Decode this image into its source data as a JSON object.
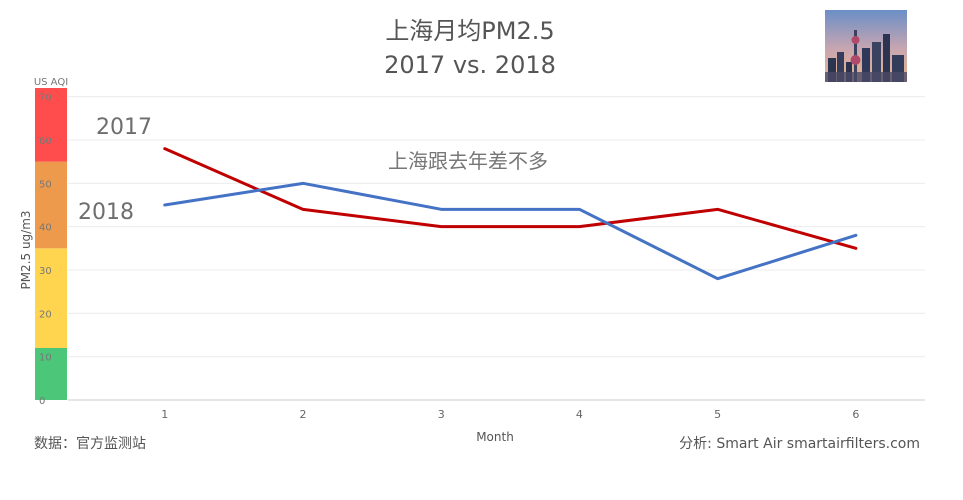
{
  "chart_data": {
    "type": "line",
    "title": "上海月均PM2.5",
    "subtitle": "2017 vs. 2018",
    "xlabel": "Month",
    "ylabel": "PM2.5 ug/m3",
    "x": [
      1,
      2,
      3,
      4,
      5,
      6
    ],
    "xlim": [
      0.3,
      6.5
    ],
    "ylim": [
      0,
      72
    ],
    "grid": true,
    "series": [
      {
        "name": "2017",
        "color": "#c00000",
        "values": [
          58,
          44,
          40,
          40,
          44,
          35
        ]
      },
      {
        "name": "2018",
        "color": "#4472c4",
        "values": [
          45,
          50,
          44,
          44,
          28,
          38
        ]
      }
    ],
    "aqi_scale": {
      "label": "US AQI",
      "ticks": [
        "0",
        "10",
        "20",
        "30",
        "40",
        "50",
        "60",
        "70"
      ],
      "bands": [
        {
          "from": 0,
          "to": 12,
          "color": "#4cc77a"
        },
        {
          "from": 12,
          "to": 35,
          "color": "#ffd54f"
        },
        {
          "from": 35,
          "to": 55,
          "color": "#ee9a4d"
        },
        {
          "from": 55,
          "to": 72,
          "color": "#ff4d4d"
        }
      ]
    },
    "annotation": "上海跟去年差不多",
    "source": "数据：官方监测站",
    "credit": "分析: Smart Air smartairfilters.com"
  }
}
